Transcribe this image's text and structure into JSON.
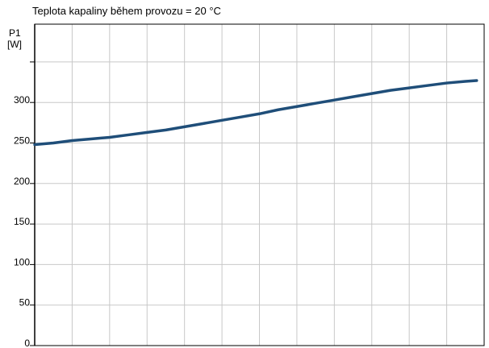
{
  "chart_data": {
    "type": "line",
    "title": "Teplota kapaliny během provozu = 20 °C",
    "ylabel_line1": "P1",
    "ylabel_line2": "[W]",
    "ylim": [
      0,
      350
    ],
    "yticks": [
      0,
      50,
      100,
      150,
      200,
      250,
      300
    ],
    "grid": true,
    "x_vertical_gridlines": 12,
    "series": [
      {
        "color": "#1f4e79",
        "points": [
          [
            0.0,
            248
          ],
          [
            0.5,
            250
          ],
          [
            1.0,
            253
          ],
          [
            1.5,
            255
          ],
          [
            2.0,
            257
          ],
          [
            2.5,
            260
          ],
          [
            3.0,
            263
          ],
          [
            3.5,
            266
          ],
          [
            4.0,
            270
          ],
          [
            4.5,
            274
          ],
          [
            5.0,
            278
          ],
          [
            5.5,
            282
          ],
          [
            6.0,
            286
          ],
          [
            6.5,
            291
          ],
          [
            7.0,
            295
          ],
          [
            7.5,
            299
          ],
          [
            8.0,
            303
          ],
          [
            8.5,
            307
          ],
          [
            9.0,
            311
          ],
          [
            9.5,
            315
          ],
          [
            10.0,
            318
          ],
          [
            10.5,
            321
          ],
          [
            11.0,
            324
          ],
          [
            11.5,
            326
          ],
          [
            11.8,
            327
          ]
        ]
      }
    ]
  }
}
